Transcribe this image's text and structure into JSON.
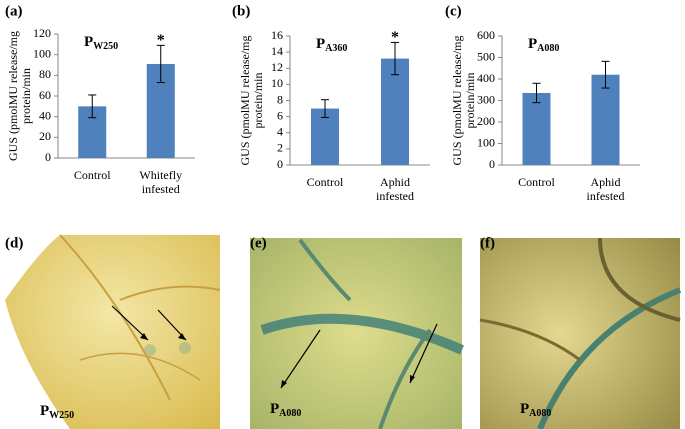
{
  "chart_data": [
    {
      "type": "bar",
      "panel": "(a)",
      "title": "P",
      "title_subscript": "W250",
      "ylabel": [
        "GUS (pmolMU release/mg",
        "protein/min"
      ],
      "categories": [
        [
          "Control"
        ],
        [
          "Whitefly",
          "infested"
        ]
      ],
      "values": [
        50,
        91
      ],
      "errors": [
        11,
        18
      ],
      "annotations": [
        null,
        "*"
      ],
      "color": "#4f81bd",
      "ylim": [
        0,
        120
      ],
      "yticks": [
        0,
        20,
        40,
        60,
        80,
        100,
        120
      ],
      "grid": false
    },
    {
      "type": "bar",
      "panel": "(b)",
      "title": "P",
      "title_subscript": "A360",
      "ylabel": [
        "GUS (pmolMU release/mg",
        "protein/min"
      ],
      "categories": [
        [
          "Control"
        ],
        [
          "Aphid",
          "infested"
        ]
      ],
      "values": [
        7.0,
        13.2
      ],
      "errors": [
        1.1,
        2.0
      ],
      "annotations": [
        null,
        "*"
      ],
      "color": "#4f81bd",
      "ylim": [
        0,
        16
      ],
      "yticks": [
        0,
        2,
        4,
        6,
        8,
        10,
        12,
        14,
        16
      ],
      "grid": false
    },
    {
      "type": "bar",
      "panel": "(c)",
      "title": "P",
      "title_subscript": "A080",
      "ylabel": [
        "GUS (pmolMU release/mg",
        "protein/min"
      ],
      "categories": [
        [
          "Control"
        ],
        [
          "Aphid",
          "infested"
        ]
      ],
      "values": [
        335,
        420
      ],
      "errors": [
        45,
        62
      ],
      "annotations": [
        null,
        null
      ],
      "color": "#4f81bd",
      "ylim": [
        0,
        600
      ],
      "yticks": [
        0,
        100,
        200,
        300,
        400,
        500,
        600
      ],
      "grid": false
    }
  ],
  "photos": [
    {
      "panel": "(d)",
      "label": "P",
      "label_subscript": "W250"
    },
    {
      "panel": "(e)",
      "label": "P",
      "label_subscript": "A080"
    },
    {
      "panel": "(f)",
      "label": "P",
      "label_subscript": "A080"
    }
  ]
}
